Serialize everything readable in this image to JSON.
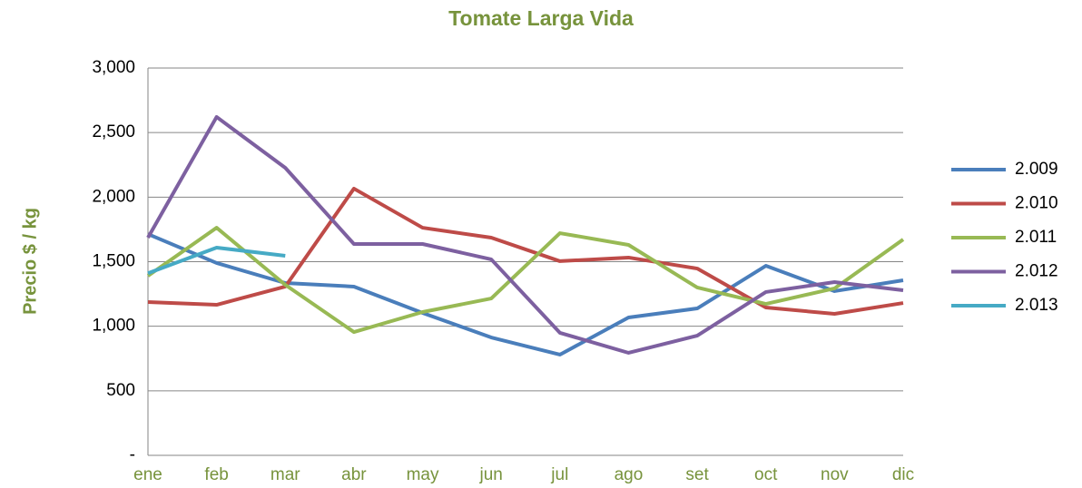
{
  "chart_data": {
    "type": "line",
    "title": "Tomate Larga Vida",
    "y_label": "Precio $ / kg",
    "categories": [
      "ene",
      "feb",
      "mar",
      "abr",
      "may",
      "jun",
      "jul",
      "ago",
      "set",
      "oct",
      "nov",
      "dic"
    ],
    "series": [
      {
        "name": "2.009",
        "color": "#4a7ebb",
        "values": [
          1714,
          1490,
          1335,
          1307,
          1103,
          913,
          780,
          1068,
          1138,
          1468,
          1272,
          1356
        ]
      },
      {
        "name": "2.010",
        "color": "#be4b48",
        "values": [
          1187,
          1166,
          1307,
          2066,
          1763,
          1686,
          1504,
          1532,
          1447,
          1145,
          1096,
          1180
        ]
      },
      {
        "name": "2.011",
        "color": "#98b954",
        "values": [
          1390,
          1763,
          1321,
          955,
          1110,
          1215,
          1721,
          1630,
          1300,
          1173,
          1293,
          1672
        ]
      },
      {
        "name": "2.012",
        "color": "#7d60a0",
        "values": [
          1686,
          2621,
          2227,
          1637,
          1637,
          1518,
          949,
          794,
          927,
          1265,
          1342,
          1279
        ]
      },
      {
        "name": "2.013",
        "color": "#46aac5",
        "values": [
          1410,
          1609,
          1546,
          null,
          null,
          null,
          null,
          null,
          null,
          null,
          null,
          null
        ]
      }
    ],
    "ylim": [
      0,
      3000
    ],
    "yticks": [
      {
        "value": 0,
        "label": "-"
      },
      500,
      {
        "value": 1000,
        "label": "1,000"
      },
      {
        "value": 1500,
        "label": "1,500"
      },
      {
        "value": 2000,
        "label": "2,000"
      },
      {
        "value": 2500,
        "label": "2,500"
      },
      {
        "value": 3000,
        "label": "3,000"
      }
    ],
    "grid": true,
    "legend": "right"
  }
}
